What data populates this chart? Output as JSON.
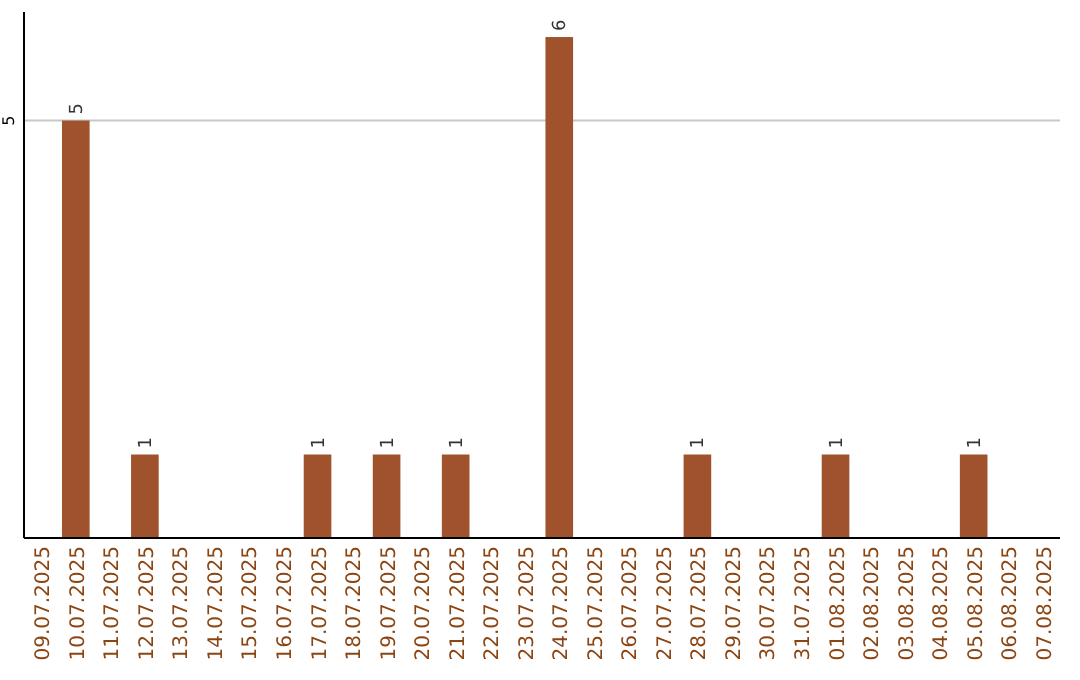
{
  "chart_data": {
    "type": "bar",
    "categories": [
      "09.07.2025",
      "10.07.2025",
      "11.07.2025",
      "12.07.2025",
      "13.07.2025",
      "14.07.2025",
      "15.07.2025",
      "16.07.2025",
      "17.07.2025",
      "18.07.2025",
      "19.07.2025",
      "20.07.2025",
      "21.07.2025",
      "22.07.2025",
      "23.07.2025",
      "24.07.2025",
      "25.07.2025",
      "26.07.2025",
      "27.07.2025",
      "28.07.2025",
      "29.07.2025",
      "30.07.2025",
      "31.07.2025",
      "01.08.2025",
      "02.08.2025",
      "03.08.2025",
      "04.08.2025",
      "05.08.2025",
      "06.08.2025",
      "07.08.2025"
    ],
    "values": [
      0,
      5,
      0,
      1,
      0,
      0,
      0,
      0,
      1,
      0,
      1,
      0,
      1,
      0,
      0,
      6,
      0,
      0,
      0,
      1,
      0,
      0,
      0,
      1,
      0,
      0,
      0,
      1,
      0,
      0
    ],
    "color": "#a0522d",
    "ylim": [
      0,
      6.3
    ],
    "yticks": [
      5
    ],
    "grid": "y",
    "value_labels": [
      null,
      "5",
      null,
      "1",
      null,
      null,
      null,
      null,
      "1",
      null,
      "1",
      null,
      "1",
      null,
      null,
      "6",
      null,
      null,
      null,
      "1",
      null,
      null,
      null,
      "1",
      null,
      null,
      null,
      "1",
      null,
      null
    ]
  }
}
